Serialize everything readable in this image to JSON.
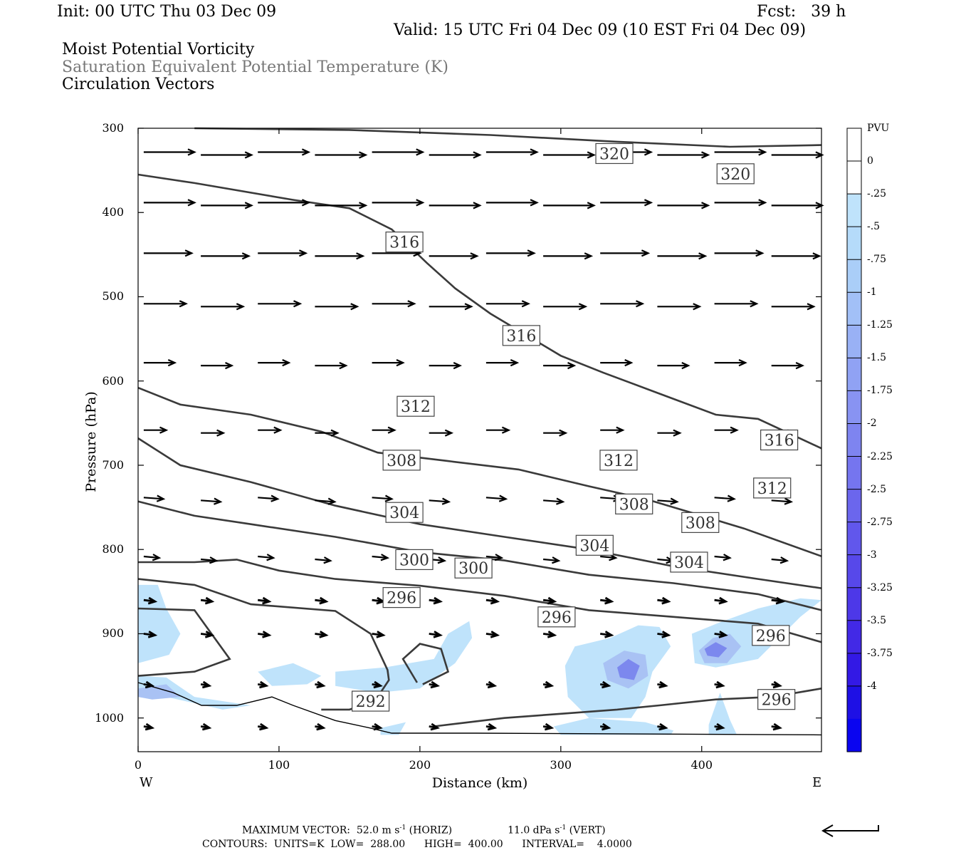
{
  "header": {
    "init": "Init: 00 UTC Thu 03 Dec 09",
    "fcst": "Fcst:   39 h",
    "valid": "Valid: 15 UTC Fri 04 Dec 09 (10 EST Fri 04 Dec 09)",
    "fields": [
      "Moist Potential Vorticity",
      "Saturation Equivalent Potential Temperature (K)",
      "Circulation Vectors"
    ]
  },
  "footer": {
    "maxvec_a": "MAXIMUM VECTOR:  52.0 m s",
    "maxvec_b": " (HORIZ)",
    "maxvec_c": "11.0 dPa s",
    "maxvec_d": " (VERT)",
    "sup": "-1",
    "contours": "CONTOURS:  UNITS=K  LOW=  288.00      HIGH=  400.00      INTERVAL=    4.0000"
  },
  "colors": {
    "contour": "#3a3a3a",
    "shade_light": "#bfe3fb",
    "shade_mid": "#a9c2f4",
    "shade_dark": "#7c88ee"
  },
  "chart_data": {
    "type": "cross-section",
    "xlabel": "Distance (km)",
    "ylabel": "Pressure (hPa)",
    "xlim": [
      0,
      485
    ],
    "ylim": [
      1040,
      300
    ],
    "y_scale": "linear, inverted",
    "x_ticks": [
      "0",
      "100",
      "200",
      "300",
      "400"
    ],
    "y_ticks": [
      "300",
      "400",
      "500",
      "600",
      "700",
      "800",
      "900",
      "1000"
    ],
    "end_labels": {
      "west": "W",
      "east": "E"
    },
    "colorbar": {
      "unit": "PVU",
      "labels": [
        "0",
        "-.25",
        "-.5",
        "-.75",
        "-1",
        "-1.25",
        "-1.5",
        "-1.75",
        "-2",
        "-2.25",
        "-2.5",
        "-2.75",
        "-3",
        "-3.25",
        "-3.5",
        "-3.75",
        "-4"
      ],
      "colors": [
        "#ffffff",
        "#ffffff",
        "#bfe3fb",
        "#b5dbfa",
        "#aacef8",
        "#a2c0f7",
        "#99b1f5",
        "#90a2f4",
        "#8893f2",
        "#7e84f0",
        "#7575ef",
        "#6b66ed",
        "#6157ec",
        "#5748ea",
        "#4d38e8",
        "#4229e6",
        "#3319e5",
        "#1e10e5",
        "#0a05f0"
      ]
    },
    "theta_es_labels": [
      {
        "label": "320",
        "x": 338,
        "p": 330
      },
      {
        "label": "320",
        "x": 424,
        "p": 354
      },
      {
        "label": "316",
        "x": 189,
        "p": 435
      },
      {
        "label": "316",
        "x": 272,
        "p": 546
      },
      {
        "label": "316",
        "x": 455,
        "p": 670
      },
      {
        "label": "312",
        "x": 197,
        "p": 630
      },
      {
        "label": "312",
        "x": 341,
        "p": 694
      },
      {
        "label": "312",
        "x": 450,
        "p": 727
      },
      {
        "label": "308",
        "x": 187,
        "p": 694
      },
      {
        "label": "308",
        "x": 352,
        "p": 746
      },
      {
        "label": "308",
        "x": 399,
        "p": 768
      },
      {
        "label": "304",
        "x": 189,
        "p": 756
      },
      {
        "label": "304",
        "x": 324,
        "p": 795
      },
      {
        "label": "304",
        "x": 391,
        "p": 815
      },
      {
        "label": "300",
        "x": 196,
        "p": 812
      },
      {
        "label": "300",
        "x": 238,
        "p": 822
      },
      {
        "label": "296",
        "x": 187,
        "p": 857
      },
      {
        "label": "296",
        "x": 297,
        "p": 880
      },
      {
        "label": "296",
        "x": 449,
        "p": 902
      },
      {
        "label": "296",
        "x": 453,
        "p": 978
      },
      {
        "label": "292",
        "x": 165,
        "p": 980
      }
    ],
    "vector_rows_p": [
      330,
      390,
      450,
      510,
      580,
      660,
      740,
      810,
      860,
      900,
      960,
      1010
    ]
  }
}
